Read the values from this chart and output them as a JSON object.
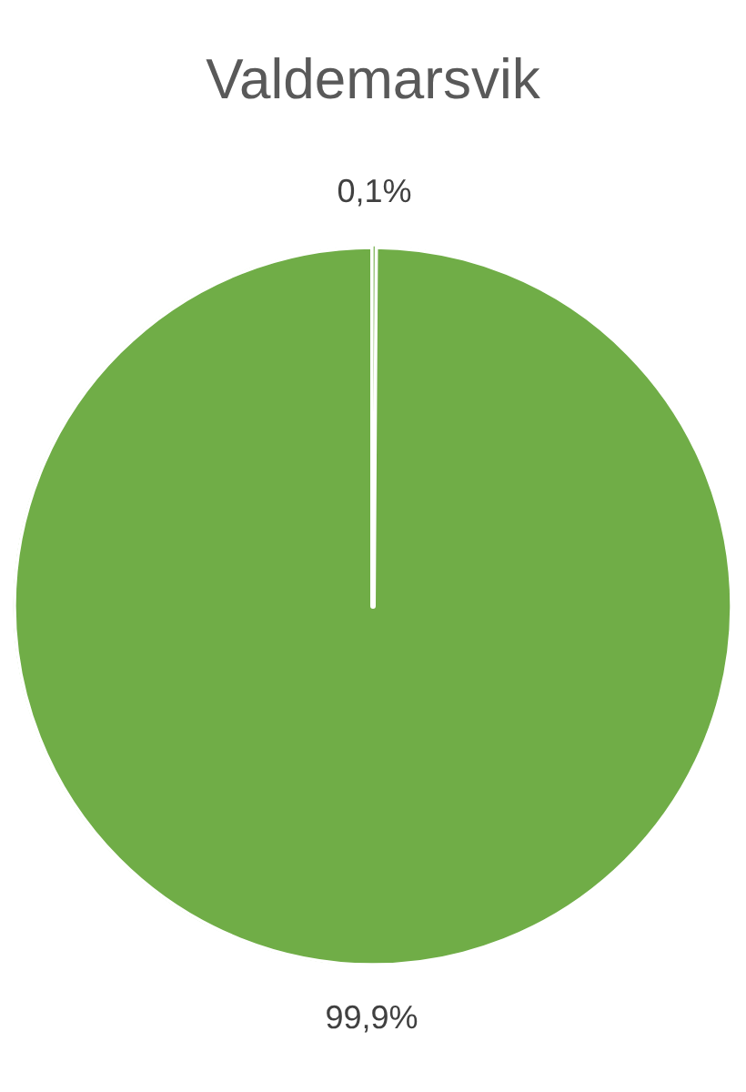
{
  "chart_data": {
    "type": "pie",
    "title": "Valdemarsvik",
    "categories": [
      null,
      null
    ],
    "values": [
      0.1,
      99.9
    ],
    "colors": [
      "#70ad47",
      "#70ad47"
    ],
    "value_labels": [
      "0,1%",
      "99,9%"
    ],
    "legend": false
  }
}
